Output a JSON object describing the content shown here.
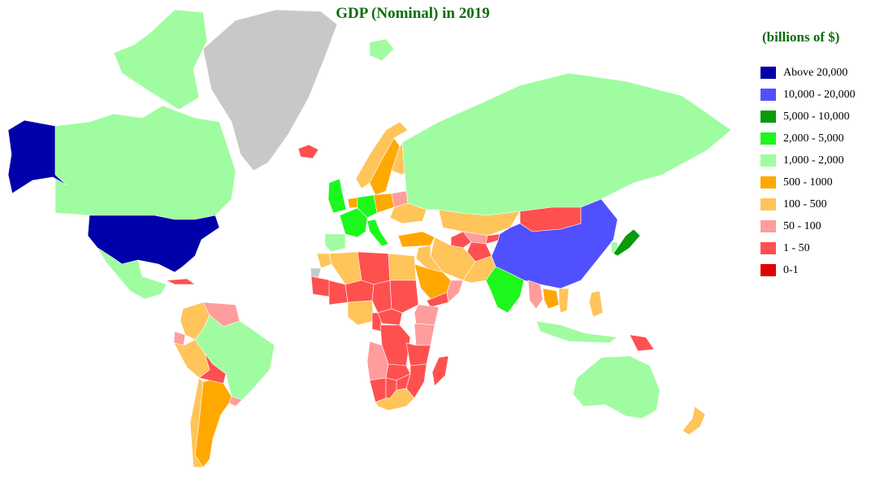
{
  "title": "GDP (Nominal) in 2019",
  "legend": {
    "title": "(billions of $)",
    "items": [
      {
        "label": "Above 20,000",
        "color": "#0000a8"
      },
      {
        "label": "10,000 - 20,000",
        "color": "#5050ff"
      },
      {
        "label": "5,000 - 10,000",
        "color": "#0c9a0c"
      },
      {
        "label": "2,000 - 5,000",
        "color": "#1cf81c"
      },
      {
        "label": "1,000 - 2,000",
        "color": "#a0fca0"
      },
      {
        "label": "500 - 1000",
        "color": "#ffa800"
      },
      {
        "label": "100 - 500",
        "color": "#ffc45a"
      },
      {
        "label": "50 - 100",
        "color": "#ff9c9c"
      },
      {
        "label": "1 - 50",
        "color": "#ff5050"
      },
      {
        "label": "0-1",
        "color": "#e00000"
      }
    ]
  },
  "no_data_color": "#c8c8c8",
  "regions": [
    {
      "name": "United States",
      "cls": 0
    },
    {
      "name": "Alaska",
      "cls": 0
    },
    {
      "name": "China",
      "cls": 1
    },
    {
      "name": "Japan",
      "cls": 2
    },
    {
      "name": "Germany",
      "cls": 3
    },
    {
      "name": "United Kingdom",
      "cls": 3
    },
    {
      "name": "France",
      "cls": 3
    },
    {
      "name": "India",
      "cls": 3
    },
    {
      "name": "Italy",
      "cls": 3
    },
    {
      "name": "Canada",
      "cls": 4
    },
    {
      "name": "Russia",
      "cls": 4
    },
    {
      "name": "Brazil",
      "cls": 4
    },
    {
      "name": "Australia",
      "cls": 4
    },
    {
      "name": "Mexico",
      "cls": 4
    },
    {
      "name": "Spain",
      "cls": 4
    },
    {
      "name": "South Korea",
      "cls": 4
    },
    {
      "name": "Indonesia",
      "cls": 4
    },
    {
      "name": "Canadian Arctic Islands",
      "cls": 4
    },
    {
      "name": "Svalbard",
      "cls": 4
    },
    {
      "name": "Saudi Arabia",
      "cls": 5
    },
    {
      "name": "Turkey",
      "cls": 5
    },
    {
      "name": "Sweden",
      "cls": 5
    },
    {
      "name": "Poland",
      "cls": 5
    },
    {
      "name": "Argentina",
      "cls": 5
    },
    {
      "name": "Thailand",
      "cls": 5
    },
    {
      "name": "Netherlands",
      "cls": 5
    },
    {
      "name": "Norway",
      "cls": 6
    },
    {
      "name": "Finland",
      "cls": 6
    },
    {
      "name": "Iran",
      "cls": 6
    },
    {
      "name": "Egypt",
      "cls": 6
    },
    {
      "name": "Algeria",
      "cls": 6
    },
    {
      "name": "Nigeria",
      "cls": 6
    },
    {
      "name": "South Africa",
      "cls": 6
    },
    {
      "name": "Colombia",
      "cls": 6
    },
    {
      "name": "Peru",
      "cls": 6
    },
    {
      "name": "Chile",
      "cls": 6
    },
    {
      "name": "Pakistan",
      "cls": 6
    },
    {
      "name": "Vietnam",
      "cls": 6
    },
    {
      "name": "Philippines",
      "cls": 6
    },
    {
      "name": "New Zealand",
      "cls": 6
    },
    {
      "name": "Kazakhstan",
      "cls": 6
    },
    {
      "name": "Ukraine",
      "cls": 6
    },
    {
      "name": "Iraq",
      "cls": 6
    },
    {
      "name": "Morocco",
      "cls": 6
    },
    {
      "name": "Angola",
      "cls": 7
    },
    {
      "name": "Ethiopia",
      "cls": 7
    },
    {
      "name": "Kenya",
      "cls": 7
    },
    {
      "name": "Venezuela",
      "cls": 7
    },
    {
      "name": "Myanmar",
      "cls": 7
    },
    {
      "name": "Belarus",
      "cls": 7
    },
    {
      "name": "Uzbekistan",
      "cls": 7
    },
    {
      "name": "Oman",
      "cls": 7
    },
    {
      "name": "Ecuador",
      "cls": 7
    },
    {
      "name": "Uruguay",
      "cls": 7
    },
    {
      "name": "Libya",
      "cls": 8
    },
    {
      "name": "Sudan",
      "cls": 8
    },
    {
      "name": "Mongolia",
      "cls": 8
    },
    {
      "name": "Afghanistan",
      "cls": 8
    },
    {
      "name": "Turkmenistan",
      "cls": 8
    },
    {
      "name": "Mali",
      "cls": 8
    },
    {
      "name": "Niger",
      "cls": 8
    },
    {
      "name": "Chad",
      "cls": 8
    },
    {
      "name": "DR Congo",
      "cls": 8
    },
    {
      "name": "Zambia",
      "cls": 8
    },
    {
      "name": "Mozambique",
      "cls": 8
    },
    {
      "name": "Madagascar",
      "cls": 8
    },
    {
      "name": "Bolivia",
      "cls": 8
    },
    {
      "name": "Papua New Guinea",
      "cls": 8
    },
    {
      "name": "Iceland",
      "cls": 8
    },
    {
      "name": "Yemen",
      "cls": 8
    },
    {
      "name": "Central African Republic",
      "cls": 8
    },
    {
      "name": "Tanzania",
      "cls": 8
    },
    {
      "name": "Namibia",
      "cls": 8
    },
    {
      "name": "Botswana",
      "cls": 8
    },
    {
      "name": "Zimbabwe",
      "cls": 8
    },
    {
      "name": "Mauritania",
      "cls": 8
    },
    {
      "name": "Cameroon",
      "cls": 8
    },
    {
      "name": "Kyrgyzstan",
      "cls": 8
    },
    {
      "name": "Cuba",
      "cls": 8
    },
    {
      "name": "Greenland",
      "cls": -1
    },
    {
      "name": "Western Sahara",
      "cls": -1
    }
  ]
}
